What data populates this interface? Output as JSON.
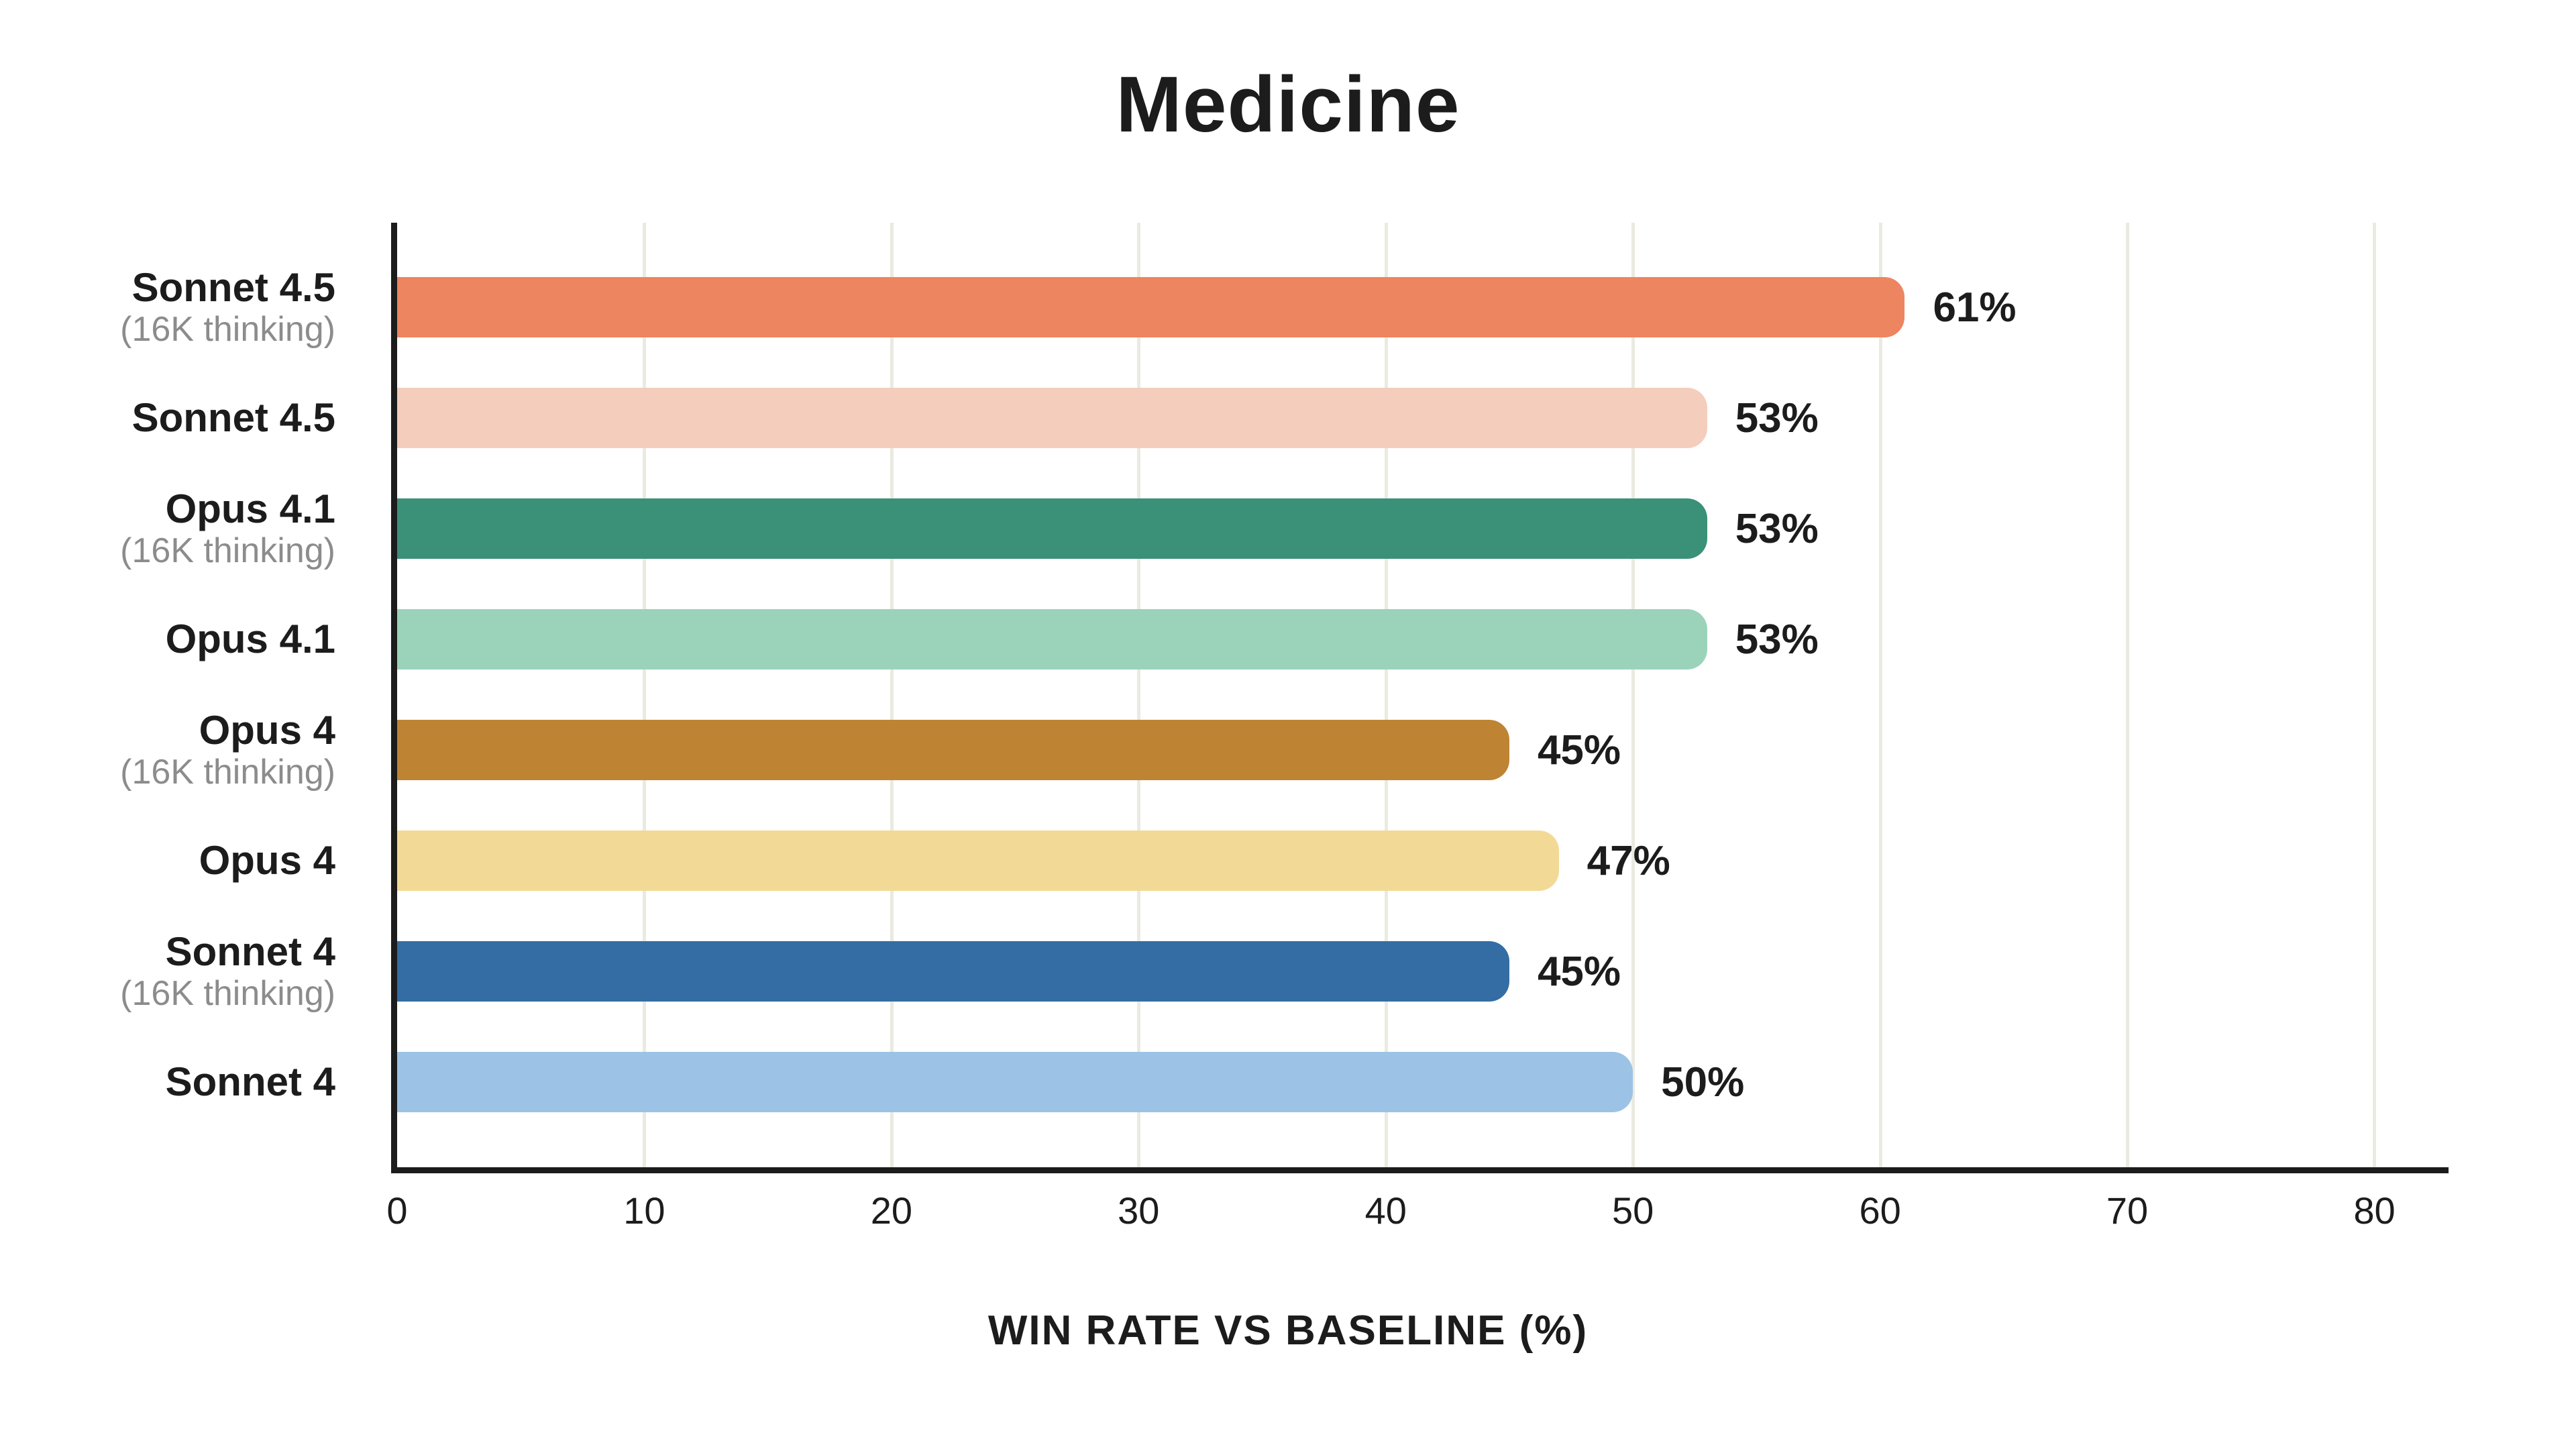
{
  "chart_data": {
    "type": "bar",
    "orientation": "horizontal",
    "title": "Medicine",
    "xlabel": "WIN RATE VS BASELINE (%)",
    "xlim": [
      0,
      83
    ],
    "x_ticks": [
      0,
      10,
      20,
      30,
      40,
      50,
      60,
      70,
      80
    ],
    "grid": true,
    "legend": false,
    "series": [
      {
        "label": "Sonnet 4.5",
        "sublabel": "(16K thinking)",
        "value": 61,
        "value_label": "61%",
        "color": "#ED8560"
      },
      {
        "label": "Sonnet 4.5",
        "sublabel": "",
        "value": 53,
        "value_label": "53%",
        "color": "#F4CDBD"
      },
      {
        "label": "Opus 4.1",
        "sublabel": "(16K thinking)",
        "value": 53,
        "value_label": "53%",
        "color": "#3B9078"
      },
      {
        "label": "Opus 4.1",
        "sublabel": "",
        "value": 53,
        "value_label": "53%",
        "color": "#9BD3BA"
      },
      {
        "label": "Opus 4",
        "sublabel": "(16K thinking)",
        "value": 45,
        "value_label": "45%",
        "color": "#BE8433"
      },
      {
        "label": "Opus 4",
        "sublabel": "",
        "value": 47,
        "value_label": "47%",
        "color": "#F2DA96"
      },
      {
        "label": "Sonnet 4",
        "sublabel": "(16K thinking)",
        "value": 45,
        "value_label": "45%",
        "color": "#336DA4"
      },
      {
        "label": "Sonnet 4",
        "sublabel": "",
        "value": 50,
        "value_label": "50%",
        "color": "#9CC3E5"
      }
    ],
    "style": {
      "background_color": "#FFFFFF",
      "axis_color": "#1C1C1C",
      "gridline_color": "#EBEAE0",
      "text_color": "#1C1C1C",
      "sublabel_color": "#8C8C8C"
    }
  }
}
